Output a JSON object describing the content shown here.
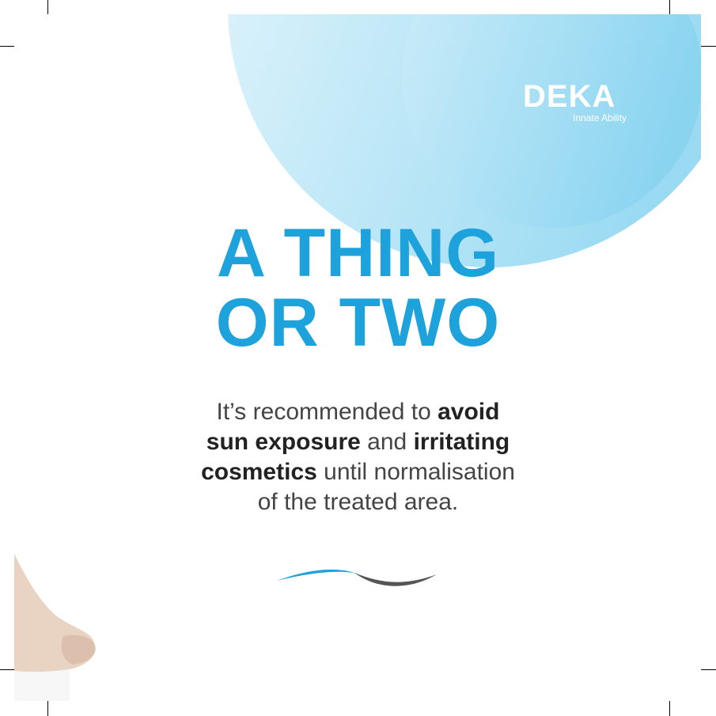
{
  "colors": {
    "accent_blue": "#1ea2dc",
    "light_blue": "#8fd7f0",
    "text_dark": "#222222",
    "wave_gray": "#555555"
  },
  "logo": {
    "name": "DEKA",
    "tagline": "Innate Ability"
  },
  "headline": {
    "line1": "A THING",
    "line2": "OR TWO"
  },
  "body": {
    "l1_a": "It’s recommended to ",
    "l1_b": "avoid",
    "l2_a": "sun exposure",
    "l2_b": " and ",
    "l2_c": "irritating",
    "l3_a": "cosmetics",
    "l3_b": " until normalisation",
    "l4": "of the treated area."
  },
  "icons": {
    "wave": "wave-divider-icon",
    "foot": "foot-image"
  }
}
